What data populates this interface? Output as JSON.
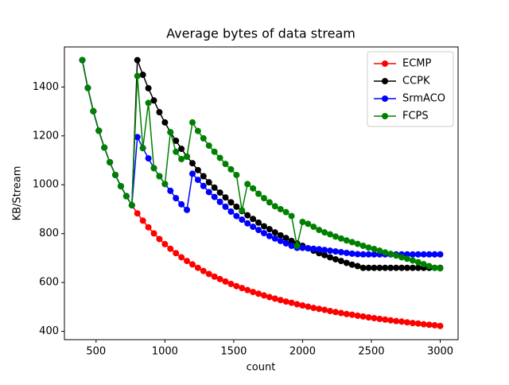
{
  "chart_data": {
    "type": "line",
    "title": "Average bytes of data stream",
    "xlabel": "count",
    "ylabel": "KB/Stream",
    "x": [
      400,
      440,
      480,
      520,
      560,
      600,
      640,
      680,
      720,
      760,
      800,
      840,
      880,
      920,
      960,
      1000,
      1040,
      1080,
      1120,
      1160,
      1200,
      1240,
      1280,
      1320,
      1360,
      1400,
      1440,
      1480,
      1520,
      1560,
      1600,
      1640,
      1680,
      1720,
      1760,
      1800,
      1840,
      1880,
      1920,
      1960,
      2000,
      2040,
      2080,
      2120,
      2160,
      2200,
      2240,
      2280,
      2320,
      2360,
      2400,
      2440,
      2480,
      2520,
      2560,
      2600,
      2640,
      2680,
      2720,
      2760,
      2800,
      2840,
      2880,
      2920,
      2960,
      3000
    ],
    "series": [
      {
        "name": "ECMP",
        "color": "#ff0000",
        "values": [
          1510,
          1396,
          1301,
          1221,
          1152,
          1092,
          1040,
          994,
          953,
          916,
          883,
          853,
          826,
          801,
          778,
          757,
          738,
          720,
          703,
          688,
          674,
          660,
          647,
          635,
          624,
          614,
          604,
          594,
          585,
          577,
          569,
          561,
          554,
          547,
          540,
          534,
          528,
          522,
          517,
          511,
          506,
          501,
          496,
          492,
          488,
          483,
          479,
          475,
          471,
          468,
          464,
          461,
          457,
          454,
          451,
          448,
          445,
          442,
          440,
          437,
          434,
          432,
          429,
          427,
          425,
          422
        ]
      },
      {
        "name": "CCPK",
        "color": "#000000",
        "values": [
          1510,
          1396,
          1301,
          1221,
          1152,
          1092,
          1040,
          994,
          953,
          916,
          1510,
          1450,
          1395,
          1345,
          1297,
          1255,
          1215,
          1180,
          1147,
          1115,
          1088,
          1060,
          1035,
          1010,
          988,
          968,
          948,
          928,
          910,
          892,
          875,
          860,
          845,
          830,
          818,
          805,
          793,
          782,
          770,
          760,
          750,
          740,
          730,
          720,
          712,
          703,
          695,
          688,
          680,
          673,
          667,
          660,
          660,
          660,
          660,
          660,
          660,
          660,
          660,
          660,
          660,
          660,
          660,
          660,
          660,
          660
        ]
      },
      {
        "name": "SrmACO",
        "color": "#0000ff",
        "values": [
          1510,
          1396,
          1301,
          1221,
          1152,
          1092,
          1040,
          994,
          953,
          916,
          1195,
          1150,
          1108,
          1068,
          1035,
          1003,
          975,
          945,
          920,
          897,
          1045,
          1020,
          995,
          970,
          950,
          930,
          910,
          890,
          872,
          857,
          842,
          828,
          815,
          802,
          790,
          780,
          770,
          760,
          750,
          742,
          742,
          740,
          738,
          736,
          733,
          730,
          727,
          724,
          721,
          718,
          716,
          715,
          715,
          715,
          715,
          715,
          715,
          715,
          715,
          715,
          715,
          715,
          715,
          715,
          715,
          715
        ]
      },
      {
        "name": "FCPS",
        "color": "#008000",
        "values": [
          1510,
          1396,
          1301,
          1221,
          1152,
          1092,
          1040,
          994,
          953,
          916,
          1445,
          1150,
          1335,
          1068,
          1035,
          1003,
          1215,
          1135,
          1105,
          1115,
          1255,
          1220,
          1190,
          1160,
          1135,
          1110,
          1085,
          1063,
          1040,
          895,
          1003,
          985,
          963,
          945,
          928,
          912,
          900,
          888,
          872,
          750,
          848,
          840,
          828,
          815,
          805,
          797,
          788,
          780,
          772,
          765,
          758,
          750,
          743,
          737,
          730,
          723,
          717,
          710,
          703,
          697,
          690,
          683,
          675,
          667,
          660,
          658
        ]
      }
    ],
    "xlim": [
      270,
      3130
    ],
    "ylim": [
      366,
      1564
    ],
    "xticks": [
      500,
      1000,
      1500,
      2000,
      2500,
      3000
    ],
    "yticks": [
      400,
      600,
      800,
      1000,
      1200,
      1400
    ],
    "legend": "upper right"
  }
}
